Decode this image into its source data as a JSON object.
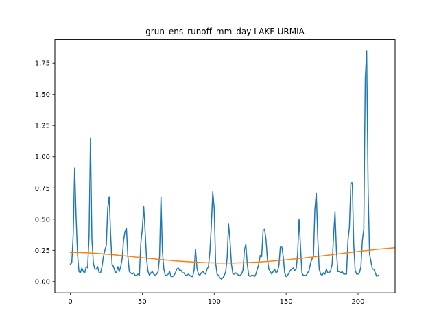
{
  "chart_data": {
    "type": "line",
    "title": "grun_ens_runoff_mm_day LAKE URMIA",
    "xlabel": "",
    "ylabel": "",
    "xlim": [
      -10.75,
      225.75
    ],
    "ylim": [
      -0.09,
      1.94
    ],
    "x_ticks": [
      0,
      50,
      100,
      150,
      200
    ],
    "y_ticks": [
      0.0,
      0.25,
      0.5,
      0.75,
      1.0,
      1.25,
      1.5,
      1.75
    ],
    "x_tick_labels": [
      "0",
      "50",
      "100",
      "150",
      "200"
    ],
    "y_tick_labels": [
      "0.00",
      "0.25",
      "0.50",
      "0.75",
      "1.00",
      "1.25",
      "1.50",
      "1.75"
    ],
    "grid": false,
    "series": [
      {
        "color": "#1f77b4",
        "x_start": 0,
        "values": [
          0.14,
          0.15,
          0.38,
          0.91,
          0.52,
          0.22,
          0.08,
          0.07,
          0.11,
          0.08,
          0.07,
          0.12,
          0.11,
          0.36,
          1.15,
          0.34,
          0.15,
          0.1,
          0.1,
          0.12,
          0.07,
          0.07,
          0.12,
          0.2,
          0.25,
          0.29,
          0.59,
          0.68,
          0.38,
          0.14,
          0.12,
          0.08,
          0.07,
          0.12,
          0.08,
          0.12,
          0.18,
          0.33,
          0.4,
          0.43,
          0.2,
          0.08,
          0.07,
          0.06,
          0.07,
          0.05,
          0.05,
          0.06,
          0.05,
          0.31,
          0.42,
          0.6,
          0.4,
          0.18,
          0.08,
          0.05,
          0.07,
          0.08,
          0.06,
          0.05,
          0.06,
          0.08,
          0.2,
          0.68,
          0.24,
          0.1,
          0.05,
          0.05,
          0.06,
          0.08,
          0.04,
          0.04,
          0.05,
          0.07,
          0.1,
          0.11,
          0.09,
          0.09,
          0.07,
          0.07,
          0.05,
          0.05,
          0.06,
          0.05,
          0.04,
          0.04,
          0.09,
          0.26,
          0.11,
          0.06,
          0.05,
          0.07,
          0.08,
          0.07,
          0.06,
          0.1,
          0.12,
          0.24,
          0.45,
          0.72,
          0.59,
          0.15,
          0.06,
          0.05,
          0.03,
          0.02,
          0.03,
          0.05,
          0.08,
          0.19,
          0.46,
          0.33,
          0.14,
          0.06,
          0.06,
          0.07,
          0.06,
          0.05,
          0.05,
          0.06,
          0.09,
          0.25,
          0.3,
          0.14,
          0.05,
          0.04,
          0.05,
          0.05,
          0.04,
          0.06,
          0.1,
          0.14,
          0.21,
          0.2,
          0.41,
          0.42,
          0.34,
          0.18,
          0.1,
          0.08,
          0.06,
          0.08,
          0.1,
          0.07,
          0.08,
          0.13,
          0.28,
          0.28,
          0.2,
          0.07,
          0.04,
          0.05,
          0.07,
          0.09,
          0.1,
          0.11,
          0.09,
          0.1,
          0.22,
          0.5,
          0.28,
          0.07,
          0.05,
          0.05,
          0.05,
          0.07,
          0.09,
          0.15,
          0.18,
          0.2,
          0.58,
          0.71,
          0.35,
          0.1,
          0.06,
          0.05,
          0.07,
          0.06,
          0.1,
          0.07,
          0.07,
          0.09,
          0.14,
          0.37,
          0.56,
          0.24,
          0.08,
          0.08,
          0.07,
          0.08,
          0.06,
          0.06,
          0.06,
          0.33,
          0.44,
          0.79,
          0.79,
          0.3,
          0.09,
          0.06,
          0.06,
          0.07,
          0.12,
          0.33,
          0.42,
          1.62,
          1.85,
          0.74,
          0.22,
          0.16,
          0.1,
          0.1,
          0.07,
          0.04,
          0.05
        ]
      },
      {
        "color": "#ff7f0e",
        "x_start": 0,
        "values": [
          0.234,
          0.234,
          0.234,
          0.234,
          0.234,
          0.233,
          0.233,
          0.233,
          0.232,
          0.232,
          0.231,
          0.231,
          0.23,
          0.23,
          0.229,
          0.228,
          0.228,
          0.227,
          0.226,
          0.225,
          0.225,
          0.224,
          0.223,
          0.222,
          0.221,
          0.22,
          0.219,
          0.218,
          0.217,
          0.216,
          0.215,
          0.214,
          0.213,
          0.212,
          0.21,
          0.209,
          0.208,
          0.207,
          0.206,
          0.205,
          0.203,
          0.202,
          0.201,
          0.2,
          0.199,
          0.197,
          0.196,
          0.195,
          0.194,
          0.192,
          0.191,
          0.19,
          0.189,
          0.188,
          0.186,
          0.185,
          0.184,
          0.183,
          0.182,
          0.181,
          0.179,
          0.178,
          0.177,
          0.176,
          0.175,
          0.174,
          0.173,
          0.172,
          0.171,
          0.17,
          0.169,
          0.168,
          0.167,
          0.166,
          0.165,
          0.164,
          0.163,
          0.162,
          0.162,
          0.161,
          0.16,
          0.159,
          0.159,
          0.158,
          0.157,
          0.157,
          0.156,
          0.155,
          0.155,
          0.154,
          0.154,
          0.153,
          0.153,
          0.152,
          0.152,
          0.151,
          0.151,
          0.151,
          0.15,
          0.15,
          0.15,
          0.15,
          0.149,
          0.149,
          0.149,
          0.149,
          0.149,
          0.149,
          0.149,
          0.149,
          0.149,
          0.149,
          0.149,
          0.149,
          0.149,
          0.15,
          0.15,
          0.15,
          0.15,
          0.151,
          0.151,
          0.151,
          0.152,
          0.152,
          0.153,
          0.153,
          0.154,
          0.154,
          0.155,
          0.155,
          0.156,
          0.157,
          0.157,
          0.158,
          0.159,
          0.16,
          0.16,
          0.161,
          0.162,
          0.163,
          0.164,
          0.165,
          0.166,
          0.167,
          0.168,
          0.169,
          0.17,
          0.171,
          0.172,
          0.173,
          0.174,
          0.175,
          0.176,
          0.177,
          0.179,
          0.18,
          0.181,
          0.182,
          0.183,
          0.185,
          0.186,
          0.187,
          0.188,
          0.19,
          0.191,
          0.192,
          0.194,
          0.195,
          0.196,
          0.198,
          0.199,
          0.2,
          0.202,
          0.203,
          0.205,
          0.206,
          0.207,
          0.209,
          0.21,
          0.212,
          0.213,
          0.214,
          0.216,
          0.217,
          0.219,
          0.22,
          0.222,
          0.223,
          0.224,
          0.226,
          0.227,
          0.229,
          0.23,
          0.231,
          0.233,
          0.234,
          0.235,
          0.237,
          0.238,
          0.239,
          0.241,
          0.242,
          0.243,
          0.245,
          0.246,
          0.247,
          0.248,
          0.25,
          0.251,
          0.252,
          0.253,
          0.254,
          0.256,
          0.257,
          0.258,
          0.259,
          0.26,
          0.261,
          0.262,
          0.263,
          0.264,
          0.265,
          0.266,
          0.267,
          0.268,
          0.269,
          0.27,
          0.271,
          0.271,
          0.272,
          0.273,
          0.274,
          0.274,
          0.275,
          0.276,
          0.276,
          0.277,
          0.277,
          0.278,
          0.278
        ]
      }
    ]
  }
}
